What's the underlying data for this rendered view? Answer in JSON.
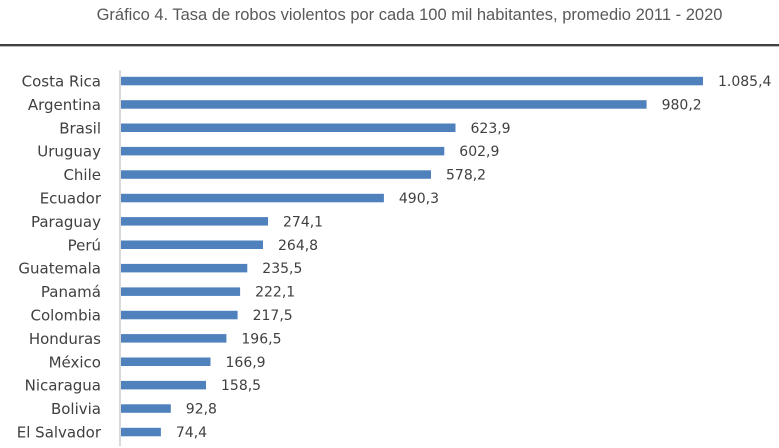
{
  "chart_data": {
    "type": "bar",
    "orientation": "horizontal",
    "title": "Gráfico 4. Tasa de robos violentos por cada 100 mil habitantes, promedio 2011 - 2020",
    "xlabel": "",
    "ylabel": "",
    "categories": [
      "Costa Rica",
      "Argentina",
      "Brasil",
      "Uruguay",
      "Chile",
      "Ecuador",
      "Paraguay",
      "Perú",
      "Guatemala",
      "Panamá",
      "Colombia",
      "Honduras",
      "México",
      "Nicaragua",
      "Bolivia",
      "El Salvador"
    ],
    "values": [
      1085.4,
      980.2,
      623.9,
      602.9,
      578.2,
      490.3,
      274.1,
      264.8,
      235.5,
      222.1,
      217.5,
      196.5,
      166.9,
      158.5,
      92.8,
      74.4
    ],
    "value_labels": [
      "1.085,4",
      "980,2",
      "623,9",
      "602,9",
      "578,2",
      "490,3",
      "274,1",
      "264,8",
      "235,5",
      "222,1",
      "217,5",
      "196,5",
      "166,9",
      "158,5",
      "92,8",
      "74,4"
    ],
    "xlim": [
      0,
      1085.4
    ],
    "grid": false,
    "legend": "none",
    "bar_color": "#4f81bd"
  }
}
